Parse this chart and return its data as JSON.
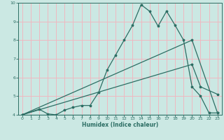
{
  "xlabel": "Humidex (Indice chaleur)",
  "background_color": "#cbe8e3",
  "grid_color": "#f0b8c0",
  "line_color": "#2d6e64",
  "xlim": [
    -0.5,
    23.5
  ],
  "ylim": [
    4,
    10
  ],
  "yticks": [
    4,
    5,
    6,
    7,
    8,
    9,
    10
  ],
  "xticks": [
    0,
    1,
    2,
    3,
    4,
    5,
    6,
    7,
    8,
    9,
    10,
    11,
    12,
    13,
    14,
    15,
    16,
    17,
    18,
    19,
    20,
    21,
    22,
    23
  ],
  "line1_x": [
    0,
    2,
    3,
    4,
    5,
    6,
    7,
    8,
    9,
    10,
    11,
    12,
    13,
    14,
    15,
    16,
    17,
    18,
    19,
    20,
    21,
    22,
    23
  ],
  "line1_y": [
    4.0,
    4.3,
    4.05,
    4.0,
    4.25,
    4.4,
    4.5,
    4.5,
    5.2,
    6.4,
    7.2,
    8.0,
    8.8,
    9.9,
    9.55,
    8.75,
    9.55,
    8.8,
    8.0,
    5.5,
    5.0,
    4.1,
    4.1
  ],
  "line2_x": [
    0,
    20,
    23
  ],
  "line2_y": [
    4.0,
    8.0,
    4.1
  ],
  "line3_x": [
    0,
    20,
    21,
    23
  ],
  "line3_y": [
    4.0,
    6.7,
    5.5,
    5.1
  ],
  "line4_x": [
    0,
    23
  ],
  "line4_y": [
    4.0,
    4.0
  ]
}
